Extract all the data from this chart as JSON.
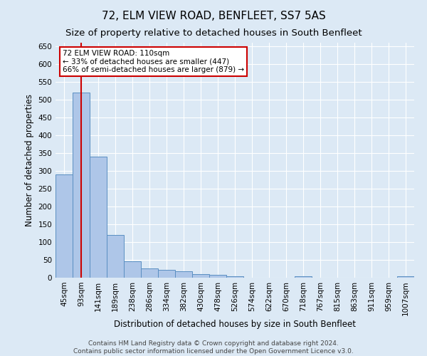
{
  "title": "72, ELM VIEW ROAD, BENFLEET, SS7 5AS",
  "subtitle": "Size of property relative to detached houses in South Benfleet",
  "xlabel": "Distribution of detached houses by size in South Benfleet",
  "ylabel": "Number of detached properties",
  "footer_line1": "Contains HM Land Registry data © Crown copyright and database right 2024.",
  "footer_line2": "Contains public sector information licensed under the Open Government Licence v3.0.",
  "categories": [
    "45sqm",
    "93sqm",
    "141sqm",
    "189sqm",
    "238sqm",
    "286sqm",
    "334sqm",
    "382sqm",
    "430sqm",
    "478sqm",
    "526sqm",
    "574sqm",
    "622sqm",
    "670sqm",
    "718sqm",
    "767sqm",
    "815sqm",
    "863sqm",
    "911sqm",
    "959sqm",
    "1007sqm"
  ],
  "values": [
    290,
    520,
    340,
    120,
    47,
    27,
    22,
    18,
    10,
    8,
    5,
    0,
    0,
    0,
    5,
    0,
    0,
    0,
    0,
    0,
    5
  ],
  "bar_color": "#aec6e8",
  "bar_edge_color": "#5a8fc2",
  "background_color": "#dce9f5",
  "grid_color": "#ffffff",
  "red_line_x": 1,
  "annotation_text": "72 ELM VIEW ROAD: 110sqm\n← 33% of detached houses are smaller (447)\n66% of semi-detached houses are larger (879) →",
  "annotation_box_color": "#ffffff",
  "annotation_border_color": "#cc0000",
  "ylim": [
    0,
    660
  ],
  "yticks": [
    0,
    50,
    100,
    150,
    200,
    250,
    300,
    350,
    400,
    450,
    500,
    550,
    600,
    650
  ],
  "title_fontsize": 11,
  "subtitle_fontsize": 9.5,
  "axis_label_fontsize": 8.5,
  "tick_fontsize": 7.5,
  "footer_fontsize": 6.5,
  "annot_fontsize": 7.5
}
